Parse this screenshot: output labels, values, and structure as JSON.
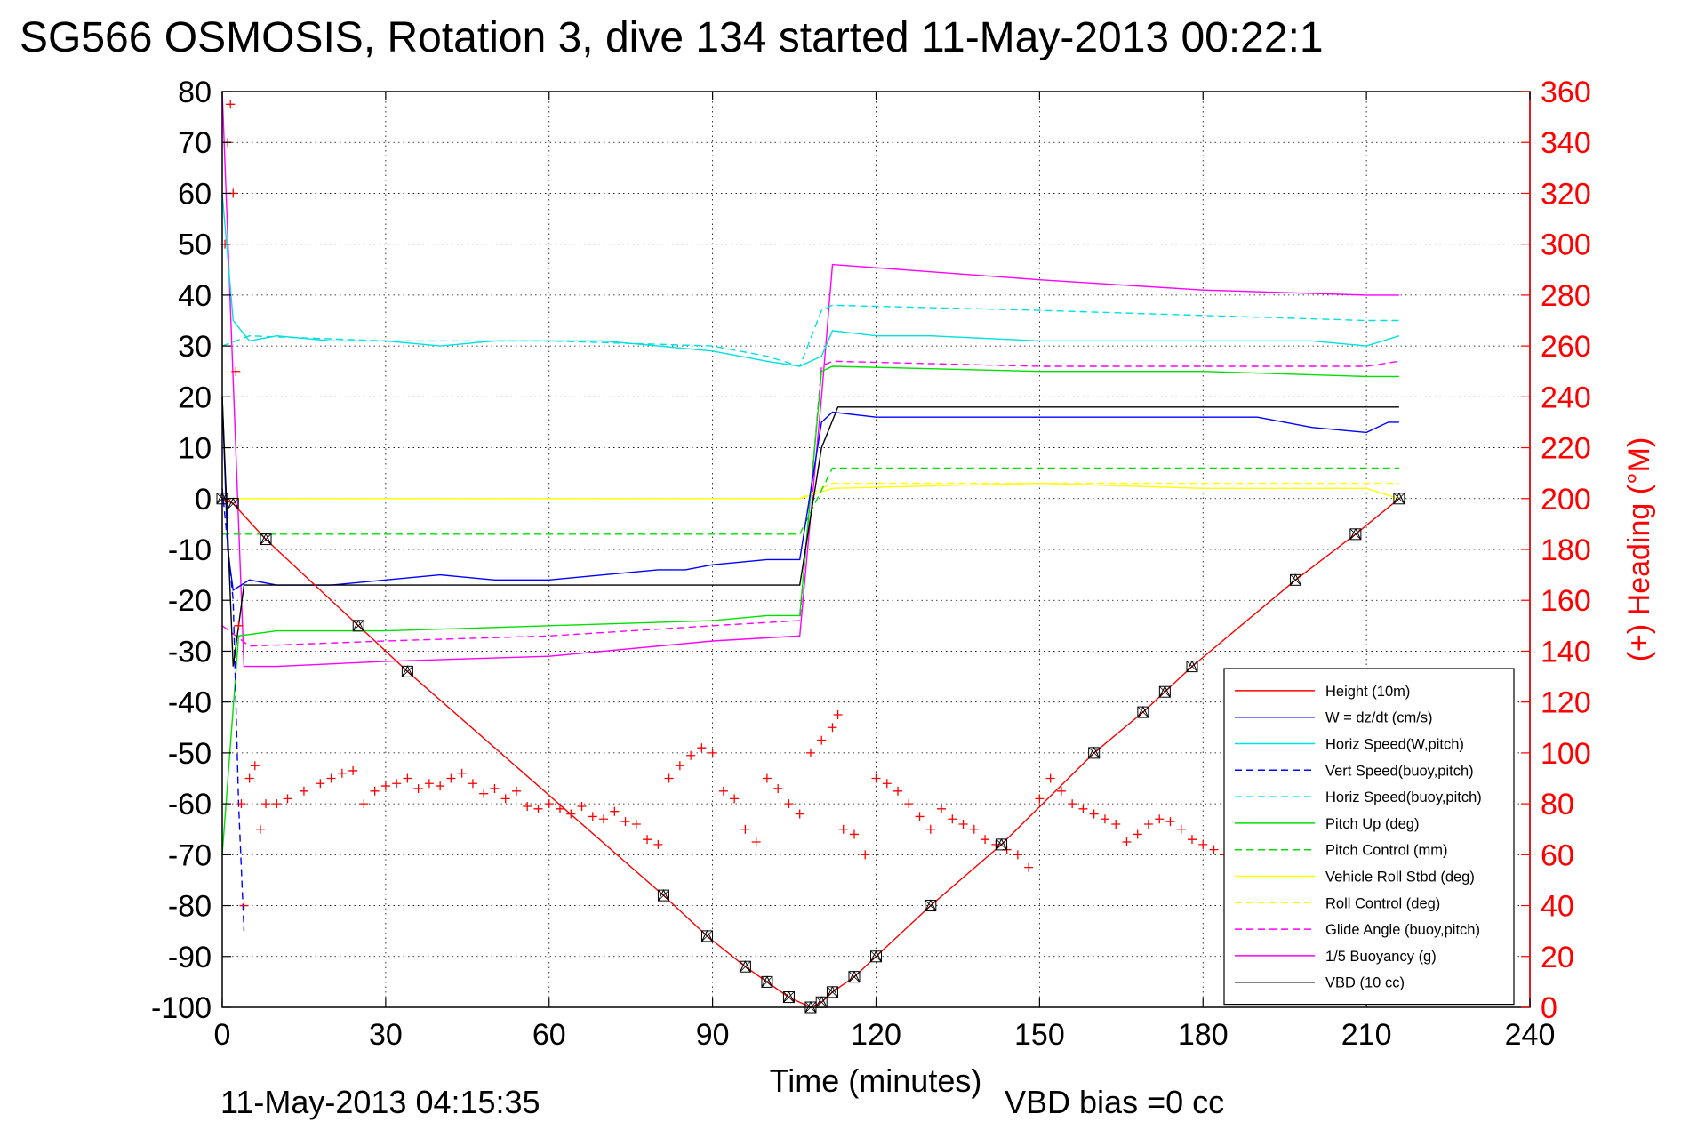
{
  "chart_data": {
    "type": "line",
    "title": "SG566 OSMOSIS, Rotation 3, dive 134 started 11-May-2013 00:22:1",
    "xlabel": "Time (minutes)",
    "ylabel": "",
    "ylabel_right": "(+) Heading (°M)",
    "footer_left": "11-May-2013 04:15:35",
    "footer_right": "VBD bias =0 cc",
    "xlim": [
      0,
      240
    ],
    "ylim": [
      -100,
      80
    ],
    "ylim_right": [
      0,
      360
    ],
    "grid": true,
    "legend_position": "bottom-right",
    "x_ticks": [
      0,
      30,
      60,
      90,
      120,
      150,
      180,
      210,
      240
    ],
    "x_tick_labels": [
      "0",
      "30",
      "60",
      "90",
      "120",
      "150",
      "180",
      "210",
      "240"
    ],
    "y_ticks": [
      80,
      70,
      60,
      50,
      40,
      30,
      20,
      10,
      0,
      -10,
      -20,
      -30,
      -40,
      -50,
      -60,
      -70,
      -80,
      -90,
      -100
    ],
    "y_tick_labels": [
      "80",
      "70",
      "60",
      "50",
      "40",
      "30",
      "20",
      "10",
      "0",
      "-10",
      "-20",
      "-30",
      "-40",
      "-50",
      "-60",
      "-70",
      "-80",
      "-90",
      "-100"
    ],
    "y2_ticks": [
      360,
      340,
      320,
      300,
      280,
      260,
      240,
      220,
      200,
      180,
      160,
      140,
      120,
      100,
      80,
      60,
      40,
      20,
      0
    ],
    "y2_tick_labels": [
      "360",
      "340",
      "320",
      "300",
      "280",
      "260",
      "240",
      "220",
      "200",
      "180",
      "160",
      "140",
      "120",
      "100",
      "80",
      "60",
      "40",
      "20",
      "0"
    ],
    "series": [
      {
        "name": "Height (10m)",
        "color": "#ff0000",
        "style": "solid",
        "x": [
          0,
          2,
          8,
          25,
          34,
          81,
          89,
          96,
          100,
          104,
          108,
          110,
          112,
          116,
          120,
          130,
          143,
          160,
          169,
          173,
          178,
          197,
          208,
          216
        ],
        "y": [
          0,
          -1,
          -8,
          -25,
          -34,
          -78,
          -86,
          -92,
          -95,
          -98,
          -100,
          -99,
          -97,
          -94,
          -90,
          -80,
          -68,
          -50,
          -42,
          -38,
          -33,
          -16,
          -7,
          0
        ]
      },
      {
        "name": "W = dz/dt (cm/s)",
        "color": "#0000ff",
        "style": "solid",
        "x": [
          0,
          1,
          2,
          5,
          10,
          20,
          30,
          40,
          50,
          60,
          70,
          80,
          85,
          90,
          100,
          106,
          110,
          112,
          120,
          130,
          150,
          170,
          190,
          200,
          210,
          214,
          216
        ],
        "y": [
          20,
          -10,
          -18,
          -16,
          -17,
          -17,
          -16,
          -15,
          -16,
          -16,
          -15,
          -14,
          -14,
          -13,
          -12,
          -12,
          15,
          17,
          16,
          16,
          16,
          16,
          16,
          14,
          13,
          15,
          15
        ]
      },
      {
        "name": "Horiz Speed(W,pitch)",
        "color": "#00e0e0",
        "style": "solid",
        "x": [
          0,
          2,
          5,
          10,
          20,
          30,
          40,
          50,
          60,
          70,
          80,
          90,
          100,
          106,
          110,
          112,
          120,
          130,
          150,
          170,
          190,
          200,
          210,
          216
        ],
        "y": [
          60,
          35,
          31,
          32,
          31,
          31,
          30,
          31,
          31,
          31,
          30,
          29,
          27,
          26,
          28,
          33,
          32,
          32,
          31,
          31,
          31,
          31,
          30,
          32
        ]
      },
      {
        "name": "Vert Speed(buoy,pitch)",
        "color": "#0000ff",
        "style": "dashed",
        "x": [
          0,
          2,
          3,
          4
        ],
        "y": [
          2,
          -20,
          -60,
          -85
        ]
      },
      {
        "name": "Horiz Speed(buoy,pitch)",
        "color": "#00e0e0",
        "style": "dashed",
        "x": [
          0,
          5,
          30,
          60,
          90,
          100,
          106,
          110,
          112,
          150,
          180,
          210,
          216
        ],
        "y": [
          30,
          32,
          31,
          31,
          30,
          28,
          26,
          37,
          38,
          37,
          36,
          35,
          35
        ]
      },
      {
        "name": "Pitch Up (deg)",
        "color": "#00e000",
        "style": "solid",
        "x": [
          0,
          3,
          10,
          30,
          60,
          90,
          100,
          106,
          110,
          112,
          150,
          180,
          210,
          216
        ],
        "y": [
          -70,
          -27,
          -26,
          -26,
          -25,
          -24,
          -23,
          -23,
          25,
          26,
          25,
          25,
          24,
          24
        ]
      },
      {
        "name": "Pitch Control (mm)",
        "color": "#00e000",
        "style": "dashed",
        "x": [
          0,
          10,
          60,
          90,
          106,
          112,
          150,
          200,
          216
        ],
        "y": [
          -7,
          -7,
          -7,
          -7,
          -7,
          6,
          6,
          6,
          6
        ]
      },
      {
        "name": "Vehicle Roll Stbd (deg)",
        "color": "#ffff00",
        "style": "solid",
        "x": [
          0,
          10,
          30,
          60,
          90,
          100,
          106,
          112,
          150,
          180,
          210,
          216
        ],
        "y": [
          0,
          0,
          0,
          0,
          0,
          0,
          0,
          2,
          3,
          2,
          2,
          0
        ]
      },
      {
        "name": "Roll Control (deg)",
        "color": "#ffff00",
        "style": "dashed",
        "x": [
          0,
          10,
          30,
          60,
          90,
          100,
          106,
          112,
          150,
          180,
          210,
          216
        ],
        "y": [
          0,
          0,
          0,
          0,
          0,
          0,
          0,
          3,
          3,
          3,
          3,
          3
        ]
      },
      {
        "name": "Glide Angle (buoy,pitch)",
        "color": "#ff00ff",
        "style": "dashed",
        "x": [
          0,
          5,
          30,
          60,
          90,
          106,
          110,
          112,
          150,
          180,
          210,
          216
        ],
        "y": [
          -25,
          -29,
          -28,
          -27,
          -25,
          -24,
          26,
          27,
          26,
          26,
          26,
          27
        ]
      },
      {
        "name": "1/5 Buoyancy (g)",
        "color": "#ff00ff",
        "style": "solid",
        "x": [
          0,
          4,
          10,
          30,
          60,
          90,
          106,
          110,
          112,
          150,
          180,
          210,
          216
        ],
        "y": [
          80,
          -33,
          -33,
          -32,
          -31,
          -28,
          -27,
          20,
          46,
          43,
          41,
          40,
          40
        ]
      },
      {
        "name": "VBD (10 cc)",
        "color": "#000000",
        "style": "solid",
        "x": [
          0,
          2,
          4,
          10,
          30,
          60,
          90,
          106,
          110,
          113,
          150,
          180,
          210,
          216
        ],
        "y": [
          20,
          -33,
          -17,
          -17,
          -17,
          -17,
          -17,
          -17,
          10,
          18,
          18,
          18,
          18,
          18
        ]
      }
    ],
    "heading_series": {
      "name": "(+) Heading",
      "axis": "right",
      "color": "#ff0000",
      "marker": "+",
      "x": [
        0.5,
        1,
        1.5,
        2,
        2.5,
        3,
        3.5,
        4,
        5,
        6,
        7,
        8,
        10,
        12,
        15,
        18,
        20,
        22,
        24,
        26,
        28,
        30,
        32,
        34,
        36,
        38,
        40,
        42,
        44,
        46,
        48,
        50,
        52,
        54,
        56,
        58,
        60,
        62,
        64,
        66,
        68,
        70,
        72,
        74,
        76,
        78,
        80,
        82,
        84,
        86,
        88,
        90,
        92,
        94,
        96,
        98,
        100,
        102,
        104,
        106,
        108,
        110,
        112,
        113,
        114,
        116,
        118,
        120,
        122,
        124,
        126,
        128,
        130,
        132,
        134,
        136,
        138,
        140,
        142,
        144,
        146,
        148,
        150,
        152,
        154,
        156,
        158,
        160,
        162,
        164,
        166,
        168,
        170,
        172,
        174,
        176,
        178,
        180,
        182,
        184,
        186,
        188,
        190,
        195,
        200,
        205,
        210
      ],
      "y": [
        300,
        340,
        355,
        320,
        250,
        150,
        80,
        40,
        90,
        95,
        70,
        80,
        80,
        82,
        85,
        88,
        90,
        92,
        93,
        80,
        85,
        87,
        88,
        90,
        86,
        88,
        87,
        90,
        92,
        88,
        84,
        86,
        82,
        85,
        79,
        78,
        80,
        78,
        76,
        79,
        75,
        74,
        77,
        73,
        72,
        66,
        64,
        90,
        95,
        99,
        102,
        100,
        85,
        82,
        70,
        65,
        90,
        86,
        80,
        76,
        100,
        105,
        110,
        115,
        70,
        68,
        60,
        90,
        88,
        85,
        80,
        75,
        70,
        78,
        74,
        72,
        70,
        66,
        64,
        62,
        60,
        55,
        82,
        90,
        85,
        80,
        78,
        76,
        74,
        72,
        65,
        68,
        72,
        74,
        73,
        70,
        66,
        64,
        62,
        60,
        58,
        52,
        48,
        70,
        80,
        85,
        90
      ]
    }
  }
}
